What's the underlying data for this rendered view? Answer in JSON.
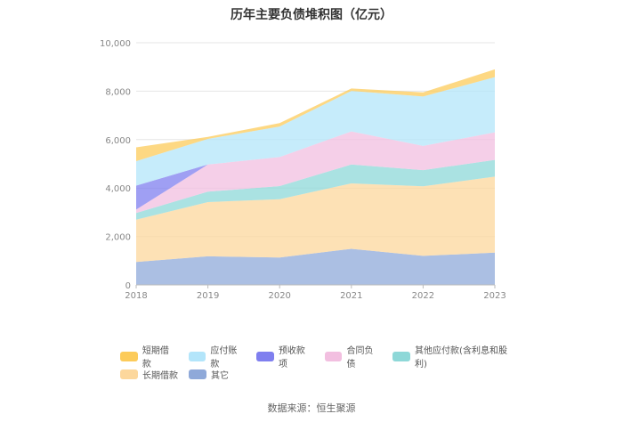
{
  "chart_data": {
    "type": "area",
    "stacked": true,
    "title": "历年主要负债堆积图（亿元）",
    "x": [
      "2018",
      "2019",
      "2020",
      "2021",
      "2022",
      "2023"
    ],
    "ylim": [
      0,
      10000
    ],
    "yticks": [
      0,
      2000,
      4000,
      6000,
      8000,
      10000
    ],
    "ytick_labels": [
      "0",
      "2,000",
      "4,000",
      "6,000",
      "8,000",
      "10,000"
    ],
    "grid": true,
    "series": [
      {
        "name": "其它",
        "color": "#8fa9d9",
        "values": [
          950,
          1180,
          1130,
          1490,
          1200,
          1330
        ]
      },
      {
        "name": "长期借款",
        "color": "#fcd79c",
        "values": [
          1740,
          2240,
          2410,
          2700,
          2870,
          3140
        ]
      },
      {
        "name": "其他应付款(含利息和股利)",
        "color": "#8ed8d8",
        "values": [
          280,
          430,
          540,
          780,
          670,
          690
        ]
      },
      {
        "name": "合同负债",
        "color": "#f2bfe0",
        "values": [
          140,
          1120,
          1200,
          1370,
          1000,
          1140
        ]
      },
      {
        "name": "预收款项",
        "color": "#7f7fef",
        "values": [
          990,
          0,
          0,
          0,
          0,
          0
        ]
      },
      {
        "name": "应付账款",
        "color": "#b3e5fa",
        "values": [
          1010,
          1060,
          1260,
          1670,
          2040,
          2280
        ]
      },
      {
        "name": "短期借款",
        "color": "#fccb5a",
        "values": [
          570,
          80,
          140,
          100,
          170,
          320
        ]
      }
    ],
    "legend": {
      "position": "bottom",
      "rows": [
        [
          "短期借款",
          "应付账款",
          "预收款项",
          "合同负债",
          "其他应付款(含利息和股利)"
        ],
        [
          "长期借款",
          "其它"
        ]
      ]
    },
    "source": "数据来源：恒生聚源"
  }
}
